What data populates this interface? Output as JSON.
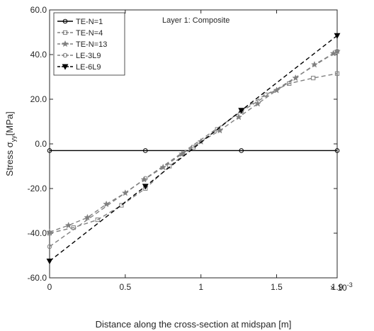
{
  "chart_data": {
    "type": "line",
    "annotation": "Layer 1: Composite",
    "xlabel": "Distance along the cross-section at midspan [m]",
    "ylabel": "Stress σ_yy [MPa]",
    "ylabel_main": "Stress σ",
    "ylabel_sub": "yy",
    "ylabel_unit": "[MPa]",
    "xlim": [
      0,
      1.9
    ],
    "ylim": [
      -60,
      60
    ],
    "x_exponent_label": "× 10",
    "x_exponent": "-3",
    "x_ticks": [
      0,
      0.5,
      1,
      1.5,
      1.9
    ],
    "x_tick_labels": [
      "0",
      "0.5",
      "1",
      "1.5",
      "1.9"
    ],
    "y_ticks": [
      -60,
      -40,
      -20,
      0,
      20,
      40,
      60
    ],
    "y_tick_labels": [
      "-60.0",
      "-40.0",
      "-20.0",
      "0.0",
      "20.0",
      "40.0",
      "60.0"
    ],
    "grid": false,
    "legend_position": "top-left",
    "series": [
      {
        "name": "TE-N=1",
        "color": "#000000",
        "dash": "solid",
        "marker": "circle",
        "x": [
          0,
          0.633,
          1.267,
          1.9
        ],
        "y": [
          -3,
          -3,
          -3,
          -3
        ]
      },
      {
        "name": "TE-N=4",
        "color": "#808080",
        "dash": "dashed",
        "marker": "square",
        "x": [
          0,
          0.158,
          0.317,
          0.475,
          0.633,
          0.792,
          0.95,
          1.108,
          1.267,
          1.425,
          1.583,
          1.742,
          1.9
        ],
        "y": [
          -40,
          -37.5,
          -34,
          -27.5,
          -20,
          -10,
          -1.5,
          6.5,
          15,
          22,
          27,
          29.5,
          31.5
        ]
      },
      {
        "name": "TE-N=13",
        "color": "#808080",
        "dash": "dashed",
        "marker": "star",
        "x": [
          0,
          0.125,
          0.25,
          0.375,
          0.5,
          0.625,
          0.75,
          0.875,
          1.0,
          1.125,
          1.25,
          1.375,
          1.5,
          1.625,
          1.75,
          1.875,
          1.9
        ],
        "y": [
          -39.5,
          -36.5,
          -33,
          -27,
          -22,
          -16,
          -10.5,
          -4.5,
          1,
          6,
          12,
          18,
          24,
          29.5,
          35.5,
          40.5,
          41.5
        ]
      },
      {
        "name": "LE-3L9",
        "color": "#808080",
        "dash": "dashed",
        "marker": "circle",
        "x": [
          0,
          0.633,
          1.267,
          1.9
        ],
        "y": [
          -46,
          -15.5,
          14.5,
          41.5
        ]
      },
      {
        "name": "LE-6L9",
        "color": "#000000",
        "dash": "dashed",
        "marker": "triangle-down",
        "x": [
          0,
          0.633,
          1.267,
          1.9
        ],
        "y": [
          -52.5,
          -19,
          15,
          48.5
        ]
      }
    ]
  }
}
